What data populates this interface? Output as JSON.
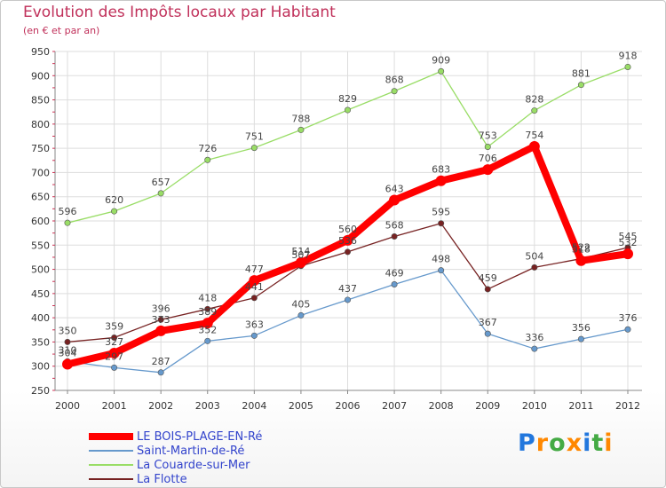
{
  "chart_data": {
    "type": "line",
    "title": "Evolution des Impôts locaux par Habitant",
    "subtitle": "(en € et par an)",
    "xlabel": "",
    "ylabel": "",
    "ylim": [
      250,
      950
    ],
    "yticks": [
      250,
      300,
      350,
      400,
      450,
      500,
      550,
      600,
      650,
      700,
      750,
      800,
      850,
      900,
      950
    ],
    "x": [
      "2000",
      "2001",
      "2002",
      "2003",
      "2004",
      "2005",
      "2006",
      "2007",
      "2008",
      "2009",
      "2010",
      "2011",
      "2012"
    ],
    "grid": true,
    "legend_position": "bottom-left",
    "series": [
      {
        "name": "LE BOIS-PLAGE-EN-Ré",
        "color": "#ff0000",
        "values": [
          304,
          327,
          373,
          389,
          477,
          514,
          560,
          643,
          683,
          706,
          754,
          518,
          532
        ],
        "labels": [
          "304",
          "327",
          "373",
          "389",
          "477",
          "514",
          "560",
          "643",
          "683",
          "706",
          "754",
          "518",
          "532"
        ]
      },
      {
        "name": "Saint-Martin-de-Ré",
        "color": "#6699cc",
        "values": [
          310,
          297,
          287,
          352,
          363,
          405,
          437,
          469,
          498,
          367,
          336,
          356,
          376
        ],
        "labels": [
          "310",
          "297",
          "287",
          "352",
          "363",
          "405",
          "437",
          "469",
          "498",
          "367",
          "336",
          "356",
          "376"
        ]
      },
      {
        "name": "La Couarde-sur-Mer",
        "color": "#99dd66",
        "values": [
          596,
          620,
          657,
          726,
          751,
          788,
          829,
          868,
          909,
          753,
          828,
          881,
          918
        ],
        "labels": [
          "596",
          "620",
          "657",
          "726",
          "751",
          "788",
          "829",
          "868",
          "909",
          "753",
          "828",
          "881",
          "918"
        ]
      },
      {
        "name": "La Flotte",
        "color": "#772222",
        "values": [
          350,
          359,
          396,
          418,
          441,
          507,
          536,
          568,
          595,
          459,
          504,
          522,
          545
        ],
        "labels": [
          "350",
          "359",
          "396",
          "418",
          "441",
          "507",
          "536",
          "568",
          "595",
          "459",
          "504",
          "522",
          "545"
        ]
      }
    ]
  },
  "brand": {
    "letters": [
      "P",
      "r",
      "o",
      "x",
      "i",
      "t",
      "i"
    ],
    "colors": [
      "#2277dd",
      "#ff8800",
      "#44aa44",
      "#ff8800",
      "#2277dd",
      "#44aa44",
      "#ff8800"
    ]
  }
}
